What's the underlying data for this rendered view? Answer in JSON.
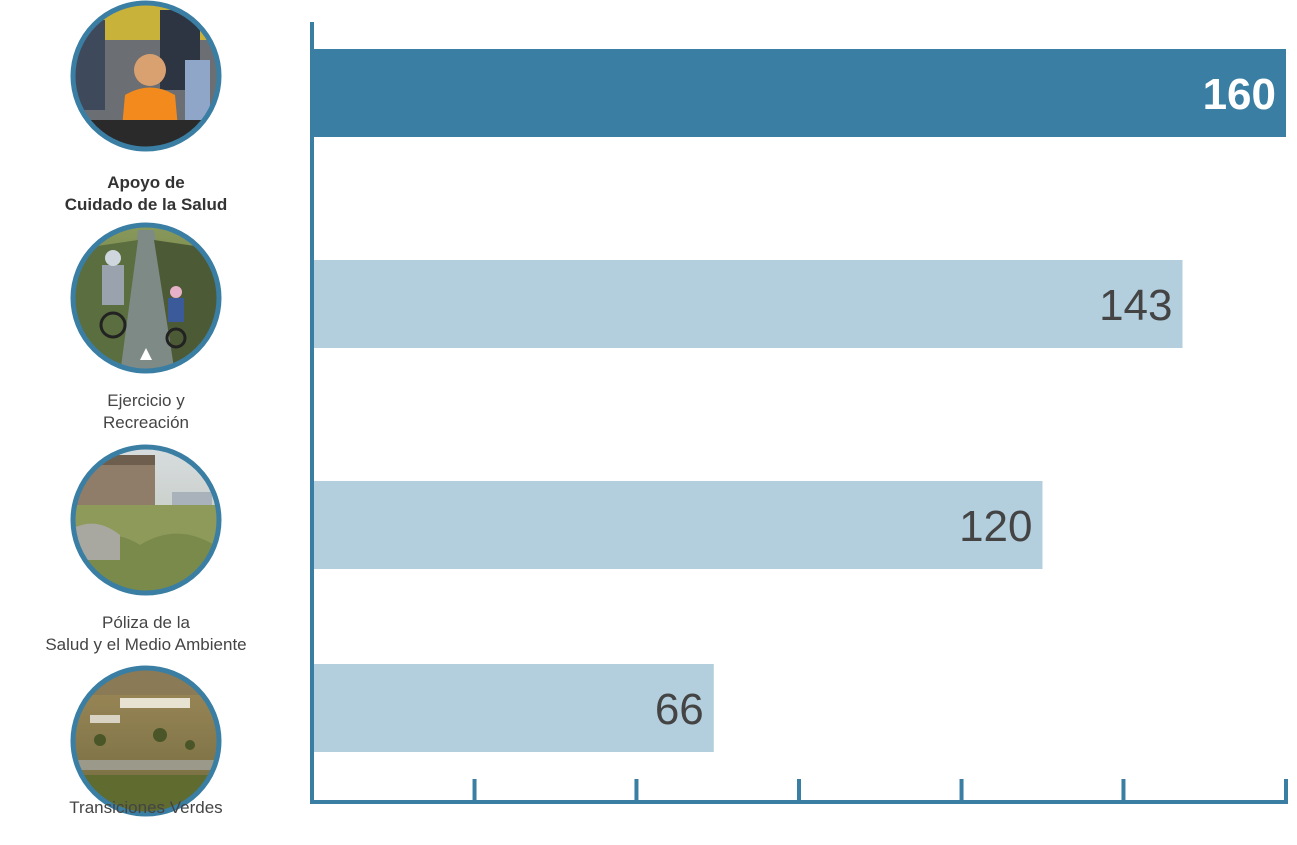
{
  "chart_data": {
    "type": "bar",
    "orientation": "horizontal",
    "title": "",
    "xlabel": "",
    "ylabel": "",
    "categories": [
      "Apoyo de\nCuidado de la Salud",
      "Ejercicio y\nRecreación",
      "Póliza de la\nSalud y el Medio Ambiente",
      "Transiciones Verdes"
    ],
    "values": [
      160,
      143,
      120,
      66
    ],
    "xlim": [
      0,
      160
    ],
    "x_ticks": [
      0,
      26.7,
      53.3,
      80,
      106.7,
      133.3,
      160
    ],
    "grid": false,
    "highlight_index": 0,
    "icons": [
      "healthcare-photo-icon",
      "cycling-photo-icon",
      "building-greenery-photo-icon",
      "aerial-landscape-photo-icon"
    ]
  },
  "colors": {
    "highlight_bar": "#3a7ea3",
    "bar": "#b3cfdd",
    "axis": "#3a7ea3",
    "value_highlight": "#ffffff",
    "value": "#444444",
    "icon_ring": "#3a7ea3"
  }
}
